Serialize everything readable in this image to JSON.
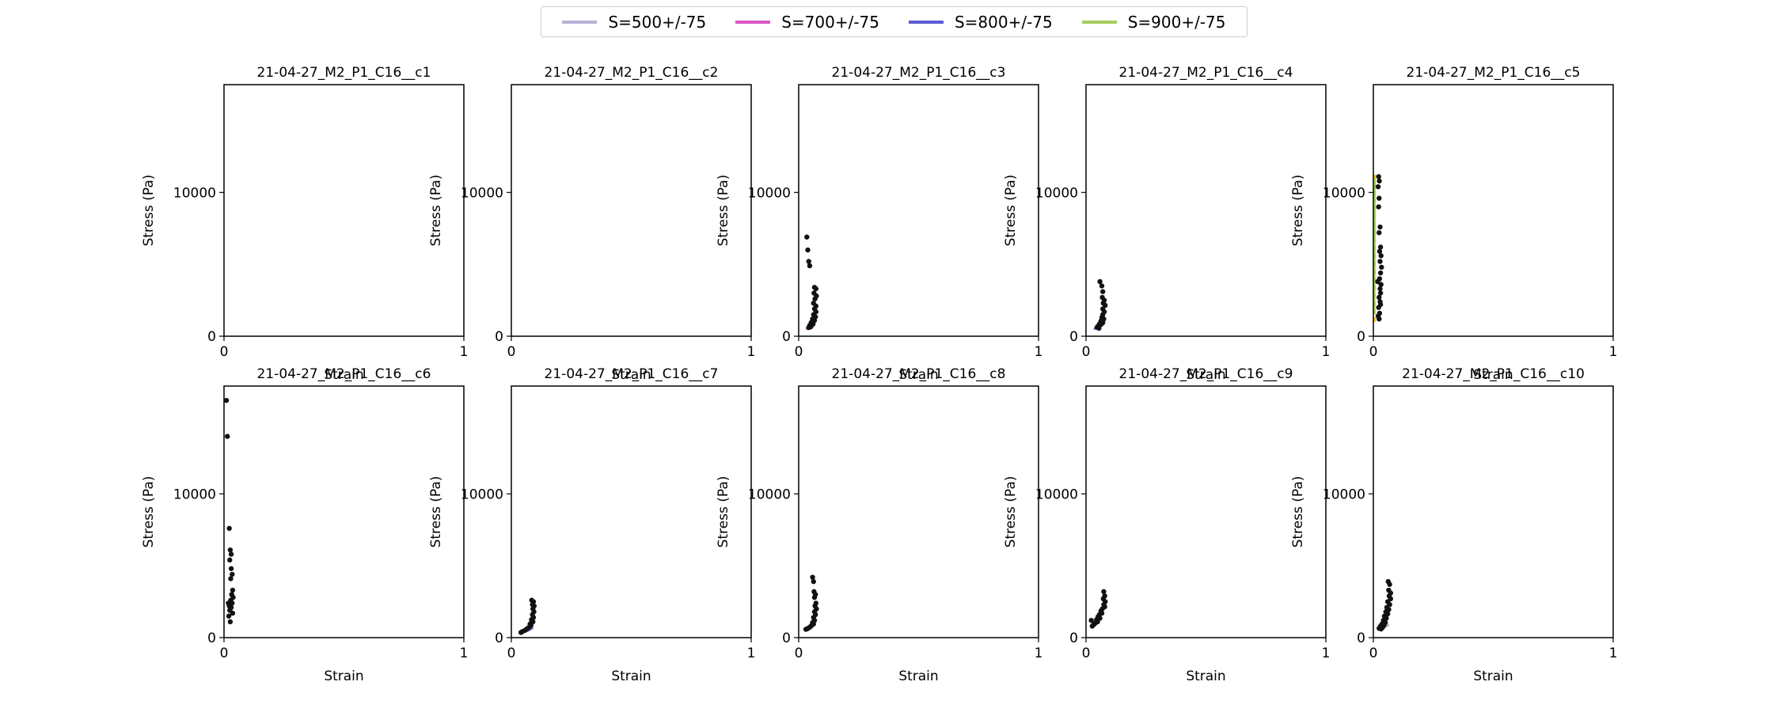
{
  "chart_data": {
    "type": "scatter",
    "legend_placement": "top-center",
    "series": [
      {
        "name": "S=500+/-75",
        "color": "#b8b1d6"
      },
      {
        "name": "S=700+/-75",
        "color": "#d957c6"
      },
      {
        "name": "S=800+/-75",
        "color": "#5c5dd6"
      },
      {
        "name": "S=900+/-75",
        "color": "#a6cc5c"
      }
    ],
    "point_color": "#111111",
    "panels": [
      {
        "title": "21-04-27_M2_P1_C16__c1",
        "xlabel": "Strain",
        "ylabel": "Stress (Pa)",
        "xlim": [
          0,
          1
        ],
        "ylim": [
          0,
          17500
        ],
        "xticks": [
          "0",
          "1"
        ],
        "yticks": [
          "0",
          "10000"
        ],
        "points": [],
        "curves": []
      },
      {
        "title": "21-04-27_M2_P1_C16__c2",
        "xlabel": "Strain",
        "ylabel": "Stress (Pa)",
        "xlim": [
          0,
          1
        ],
        "ylim": [
          0,
          17500
        ],
        "xticks": [
          "0",
          "1"
        ],
        "yticks": [
          "0",
          "10000"
        ],
        "points": [],
        "curves": []
      },
      {
        "title": "21-04-27_M2_P1_C16__c3",
        "xlabel": "Strain",
        "ylabel": "Stress (Pa)",
        "xlim": [
          0,
          1
        ],
        "ylim": [
          0,
          17500
        ],
        "xticks": [
          "0",
          "1"
        ],
        "yticks": [
          "0",
          "10000"
        ],
        "points": [
          [
            0.034,
            6900
          ],
          [
            0.038,
            6000
          ],
          [
            0.042,
            5200
          ],
          [
            0.046,
            4900
          ],
          [
            0.066,
            3400
          ],
          [
            0.072,
            3300
          ],
          [
            0.064,
            3000
          ],
          [
            0.074,
            2800
          ],
          [
            0.068,
            2600
          ],
          [
            0.062,
            2300
          ],
          [
            0.072,
            2100
          ],
          [
            0.066,
            1900
          ],
          [
            0.072,
            1700
          ],
          [
            0.062,
            1500
          ],
          [
            0.07,
            1350
          ],
          [
            0.058,
            1200
          ],
          [
            0.066,
            1100
          ],
          [
            0.052,
            950
          ],
          [
            0.06,
            850
          ],
          [
            0.046,
            750
          ],
          [
            0.05,
            650
          ],
          [
            0.042,
            600
          ],
          [
            0.056,
            800
          ]
        ],
        "curves": [
          {
            "series": 1,
            "pts": [
              [
                0.03,
                500
              ],
              [
                0.045,
                620
              ],
              [
                0.06,
                780
              ]
            ]
          },
          {
            "series": 2,
            "pts": [
              [
                0.035,
                540
              ],
              [
                0.05,
                680
              ],
              [
                0.065,
                860
              ]
            ]
          }
        ]
      },
      {
        "title": "21-04-27_M2_P1_C16__c4",
        "xlabel": "Strain",
        "ylabel": "Stress (Pa)",
        "xlim": [
          0,
          1
        ],
        "ylim": [
          0,
          17500
        ],
        "xticks": [
          "0",
          "1"
        ],
        "yticks": [
          "0",
          "10000"
        ],
        "points": [
          [
            0.058,
            3800
          ],
          [
            0.066,
            3500
          ],
          [
            0.07,
            3100
          ],
          [
            0.068,
            2700
          ],
          [
            0.076,
            2500
          ],
          [
            0.072,
            2300
          ],
          [
            0.08,
            2150
          ],
          [
            0.07,
            1900
          ],
          [
            0.076,
            1700
          ],
          [
            0.07,
            1500
          ],
          [
            0.066,
            1300
          ],
          [
            0.074,
            1200
          ],
          [
            0.062,
            1050
          ],
          [
            0.07,
            950
          ],
          [
            0.056,
            850
          ],
          [
            0.06,
            800
          ],
          [
            0.05,
            700
          ],
          [
            0.046,
            620
          ],
          [
            0.054,
            560
          ]
        ],
        "curves": [
          {
            "series": 0,
            "pts": [
              [
                0.03,
                480
              ],
              [
                0.05,
                600
              ],
              [
                0.07,
                760
              ]
            ]
          },
          {
            "series": 2,
            "pts": [
              [
                0.035,
                520
              ],
              [
                0.055,
                660
              ],
              [
                0.075,
                840
              ]
            ]
          }
        ]
      },
      {
        "title": "21-04-27_M2_P1_C16__c5",
        "xlabel": "Strain",
        "ylabel": "Stress (Pa)",
        "xlim": [
          0,
          1
        ],
        "ylim": [
          0,
          17500
        ],
        "xticks": [
          "0",
          "1"
        ],
        "yticks": [
          "0",
          "10000"
        ],
        "points": [
          [
            0.022,
            11100
          ],
          [
            0.025,
            10800
          ],
          [
            0.02,
            10400
          ],
          [
            0.024,
            9600
          ],
          [
            0.022,
            9000
          ],
          [
            0.028,
            7600
          ],
          [
            0.024,
            7200
          ],
          [
            0.03,
            6200
          ],
          [
            0.026,
            5900
          ],
          [
            0.032,
            5600
          ],
          [
            0.028,
            5200
          ],
          [
            0.034,
            4800
          ],
          [
            0.03,
            4400
          ],
          [
            0.026,
            4000
          ],
          [
            0.032,
            3600
          ],
          [
            0.028,
            3300
          ],
          [
            0.03,
            3000
          ],
          [
            0.024,
            2700
          ],
          [
            0.028,
            2400
          ],
          [
            0.022,
            2000
          ],
          [
            0.026,
            1600
          ],
          [
            0.02,
            1400
          ],
          [
            0.024,
            1200
          ],
          [
            0.03,
            2200
          ],
          [
            0.018,
            3800
          ]
        ],
        "curves": [
          {
            "series": 3,
            "pts": [
              [
                0.003,
                1500
              ],
              [
                0.004,
                6000
              ],
              [
                0.005,
                11000
              ]
            ]
          }
        ],
        "dashed_line": {
          "color": "#f2c200",
          "pts": [
            [
              0.005,
              1000
            ],
            [
              0.006,
              11300
            ]
          ]
        }
      },
      {
        "title": "21-04-27_M2_P1_C16__c6",
        "xlabel": "Strain",
        "ylabel": "Stress (Pa)",
        "xlim": [
          0,
          1
        ],
        "ylim": [
          0,
          17500
        ],
        "xticks": [
          "0",
          "1"
        ],
        "yticks": [
          "0",
          "10000"
        ],
        "points": [
          [
            0.01,
            16500
          ],
          [
            0.014,
            14000
          ],
          [
            0.022,
            7600
          ],
          [
            0.026,
            6100
          ],
          [
            0.03,
            5800
          ],
          [
            0.024,
            5400
          ],
          [
            0.03,
            4800
          ],
          [
            0.034,
            4400
          ],
          [
            0.028,
            4100
          ],
          [
            0.036,
            3300
          ],
          [
            0.032,
            3000
          ],
          [
            0.038,
            2800
          ],
          [
            0.028,
            2600
          ],
          [
            0.034,
            2400
          ],
          [
            0.022,
            2200
          ],
          [
            0.03,
            2100
          ],
          [
            0.018,
            2400
          ],
          [
            0.024,
            1900
          ],
          [
            0.036,
            1700
          ],
          [
            0.026,
            1100
          ],
          [
            0.02,
            1500
          ]
        ],
        "curves": []
      },
      {
        "title": "21-04-27_M2_P1_C16__c7",
        "xlabel": "Strain",
        "ylabel": "Stress (Pa)",
        "xlim": [
          0,
          1
        ],
        "ylim": [
          0,
          17500
        ],
        "xticks": [
          "0",
          "1"
        ],
        "yticks": [
          "0",
          "10000"
        ],
        "points": [
          [
            0.085,
            2600
          ],
          [
            0.092,
            2500
          ],
          [
            0.088,
            2300
          ],
          [
            0.095,
            2200
          ],
          [
            0.09,
            2000
          ],
          [
            0.094,
            1800
          ],
          [
            0.088,
            1600
          ],
          [
            0.092,
            1400
          ],
          [
            0.084,
            1250
          ],
          [
            0.09,
            1100
          ],
          [
            0.078,
            950
          ],
          [
            0.082,
            850
          ],
          [
            0.072,
            700
          ],
          [
            0.064,
            600
          ],
          [
            0.056,
            500
          ],
          [
            0.046,
            420
          ],
          [
            0.04,
            360
          ]
        ],
        "curves": [
          {
            "series": 0,
            "pts": [
              [
                0.04,
                350
              ],
              [
                0.06,
                450
              ],
              [
                0.08,
                600
              ]
            ]
          },
          {
            "series": 2,
            "pts": [
              [
                0.05,
                380
              ],
              [
                0.07,
                500
              ],
              [
                0.09,
                700
              ]
            ]
          }
        ]
      },
      {
        "title": "21-04-27_M2_P1_C16__c8",
        "xlabel": "Strain",
        "ylabel": "Stress (Pa)",
        "xlim": [
          0,
          1
        ],
        "ylim": [
          0,
          17500
        ],
        "xticks": [
          "0",
          "1"
        ],
        "yticks": [
          "0",
          "10000"
        ],
        "points": [
          [
            0.058,
            4200
          ],
          [
            0.062,
            3900
          ],
          [
            0.064,
            3200
          ],
          [
            0.07,
            3000
          ],
          [
            0.066,
            2800
          ],
          [
            0.072,
            2400
          ],
          [
            0.068,
            2200
          ],
          [
            0.074,
            2000
          ],
          [
            0.066,
            1800
          ],
          [
            0.07,
            1600
          ],
          [
            0.062,
            1400
          ],
          [
            0.066,
            1200
          ],
          [
            0.058,
            1050
          ],
          [
            0.062,
            950
          ],
          [
            0.054,
            850
          ],
          [
            0.048,
            750
          ],
          [
            0.042,
            680
          ],
          [
            0.036,
            620
          ],
          [
            0.03,
            580
          ]
        ],
        "curves": [
          {
            "series": 1,
            "pts": [
              [
                0.02,
                560
              ],
              [
                0.04,
                650
              ],
              [
                0.06,
                800
              ]
            ]
          },
          {
            "series": 0,
            "pts": [
              [
                0.025,
                600
              ],
              [
                0.045,
                700
              ],
              [
                0.065,
                860
              ]
            ]
          }
        ]
      },
      {
        "title": "21-04-27_M2_P1_C16__c9",
        "xlabel": "Strain",
        "ylabel": "Stress (Pa)",
        "xlim": [
          0,
          1
        ],
        "ylim": [
          0,
          17500
        ],
        "xticks": [
          "0",
          "1"
        ],
        "yticks": [
          "0",
          "10000"
        ],
        "points": [
          [
            0.074,
            3200
          ],
          [
            0.078,
            2900
          ],
          [
            0.072,
            2700
          ],
          [
            0.08,
            2500
          ],
          [
            0.074,
            2300
          ],
          [
            0.078,
            2150
          ],
          [
            0.068,
            2000
          ],
          [
            0.062,
            1850
          ],
          [
            0.066,
            1700
          ],
          [
            0.056,
            1600
          ],
          [
            0.05,
            1450
          ],
          [
            0.058,
            1350
          ],
          [
            0.044,
            1250
          ],
          [
            0.048,
            1100
          ],
          [
            0.038,
            1000
          ],
          [
            0.032,
            900
          ],
          [
            0.026,
            800
          ],
          [
            0.022,
            1200
          ]
        ],
        "curves": []
      },
      {
        "title": "21-04-27_M2_P1_C16__c10",
        "xlabel": "Strain",
        "ylabel": "Stress (Pa)",
        "xlim": [
          0,
          1
        ],
        "ylim": [
          0,
          17500
        ],
        "xticks": [
          "0",
          "1"
        ],
        "yticks": [
          "0",
          "10000"
        ],
        "points": [
          [
            0.062,
            3900
          ],
          [
            0.068,
            3700
          ],
          [
            0.064,
            3300
          ],
          [
            0.072,
            3100
          ],
          [
            0.066,
            2900
          ],
          [
            0.072,
            2700
          ],
          [
            0.06,
            2500
          ],
          [
            0.068,
            2300
          ],
          [
            0.056,
            2100
          ],
          [
            0.064,
            1950
          ],
          [
            0.052,
            1800
          ],
          [
            0.06,
            1650
          ],
          [
            0.046,
            1500
          ],
          [
            0.054,
            1350
          ],
          [
            0.042,
            1200
          ],
          [
            0.05,
            1050
          ],
          [
            0.036,
            950
          ],
          [
            0.044,
            850
          ],
          [
            0.03,
            800
          ],
          [
            0.038,
            700
          ],
          [
            0.024,
            650
          ],
          [
            0.032,
            600
          ]
        ],
        "curves": [
          {
            "series": 3,
            "pts": [
              [
                0.02,
                600
              ],
              [
                0.04,
                700
              ],
              [
                0.06,
                850
              ]
            ]
          },
          {
            "series": 0,
            "pts": [
              [
                0.025,
                620
              ],
              [
                0.045,
                740
              ],
              [
                0.065,
                900
              ]
            ]
          }
        ]
      }
    ]
  }
}
